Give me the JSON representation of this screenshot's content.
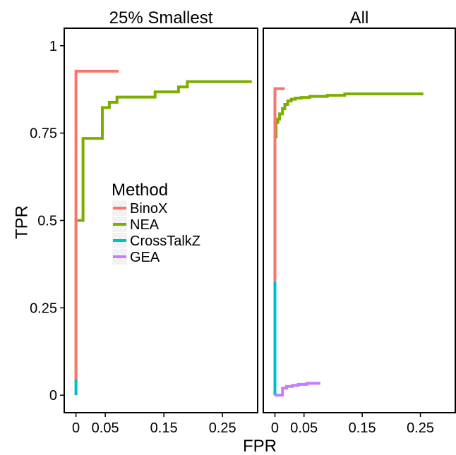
{
  "chart_data": {
    "type": "line",
    "xlabel": "FPR",
    "ylabel": "TPR",
    "xlim": [
      -0.02,
      0.31
    ],
    "ylim": [
      -0.05,
      1.05
    ],
    "x_ticks": [
      0,
      0.05,
      0.15,
      0.25
    ],
    "x_tick_labels": [
      "0",
      "0.05",
      "0.15",
      "0.25"
    ],
    "y_ticks": [
      0,
      0.25,
      0.5,
      0.75,
      1
    ],
    "y_tick_labels": [
      "0",
      "0.25",
      "0.5",
      "0.75",
      "1"
    ],
    "grid": false,
    "legend": {
      "title": "Method",
      "position": "inside left panel, center-left",
      "entries": [
        {
          "name": "BinoX",
          "color": "#F8766D"
        },
        {
          "name": "NEA",
          "color": "#7CAE00"
        },
        {
          "name": "CrossTalkZ",
          "color": "#00BFC4"
        },
        {
          "name": "GEA",
          "color": "#C77CFF"
        }
      ]
    },
    "panels": [
      {
        "title": "25% Smallest",
        "series": [
          {
            "name": "NEA",
            "color": "#7CAE00",
            "x": [
              0,
              0,
              0.012,
              0.012,
              0.045,
              0.045,
              0.057,
              0.057,
              0.07,
              0.07,
              0.135,
              0.135,
              0.175,
              0.175,
              0.19,
              0.19,
              0.3
            ],
            "y": [
              0.035,
              0.5,
              0.5,
              0.735,
              0.735,
              0.823,
              0.823,
              0.838,
              0.838,
              0.853,
              0.853,
              0.868,
              0.868,
              0.882,
              0.882,
              0.897,
              0.897
            ]
          },
          {
            "name": "BinoX",
            "color": "#F8766D",
            "x": [
              0,
              0,
              0.073
            ],
            "y": [
              0.045,
              0.927,
              0.927
            ]
          },
          {
            "name": "CrossTalkZ",
            "color": "#00BFC4",
            "x": [
              0,
              0
            ],
            "y": [
              0,
              0.045
            ]
          }
        ]
      },
      {
        "title": "All",
        "series": [
          {
            "name": "NEA",
            "color": "#7CAE00",
            "x": [
              0.002,
              0.002,
              0.005,
              0.005,
              0.008,
              0.008,
              0.013,
              0.013,
              0.017,
              0.017,
              0.022,
              0.022,
              0.028,
              0.028,
              0.035,
              0.035,
              0.045,
              0.045,
              0.06,
              0.06,
              0.09,
              0.09,
              0.12,
              0.12,
              0.255
            ],
            "y": [
              0.735,
              0.78,
              0.78,
              0.79,
              0.79,
              0.805,
              0.805,
              0.82,
              0.82,
              0.832,
              0.832,
              0.842,
              0.842,
              0.847,
              0.847,
              0.85,
              0.85,
              0.852,
              0.852,
              0.855,
              0.855,
              0.858,
              0.858,
              0.862,
              0.862
            ]
          },
          {
            "name": "BinoX",
            "color": "#F8766D",
            "x": [
              0,
              0,
              0.017
            ],
            "y": [
              0.325,
              0.877,
              0.877
            ]
          },
          {
            "name": "CrossTalkZ",
            "color": "#00BFC4",
            "x": [
              0,
              0
            ],
            "y": [
              0,
              0.325
            ]
          },
          {
            "name": "GEA",
            "color": "#C77CFF",
            "x": [
              0,
              0.013,
              0.013,
              0.02,
              0.02,
              0.03,
              0.03,
              0.04,
              0.04,
              0.055,
              0.055,
              0.078
            ],
            "y": [
              0,
              0,
              0.02,
              0.02,
              0.025,
              0.025,
              0.028,
              0.028,
              0.031,
              0.031,
              0.034,
              0.034
            ]
          }
        ]
      }
    ]
  }
}
